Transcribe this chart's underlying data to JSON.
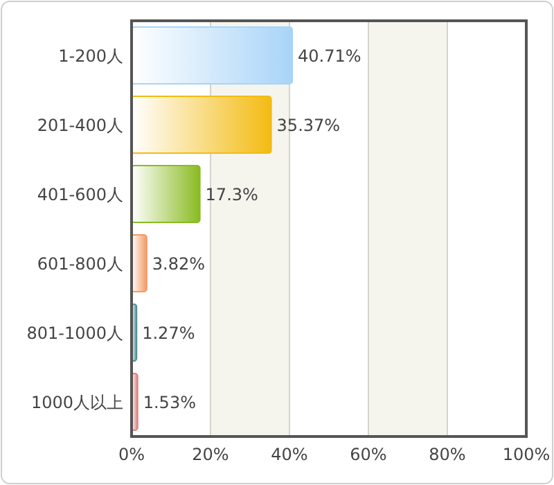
{
  "chart_data": {
    "type": "bar",
    "orientation": "horizontal",
    "categories": [
      "1-200人",
      "201-400人",
      "401-600人",
      "601-800人",
      "801-1000人",
      "1000人以上"
    ],
    "values": [
      40.71,
      35.37,
      17.3,
      3.82,
      1.27,
      1.53
    ],
    "value_labels": [
      "40.71%",
      "35.37%",
      "17.3%",
      "3.82%",
      "1.27%",
      "1.53%"
    ],
    "colors": [
      "#a8d4f8",
      "#f3bb12",
      "#8abb22",
      "#f59a66",
      "#4f8f98",
      "#e08080"
    ],
    "xlim": [
      0,
      100
    ],
    "xticks": [
      {
        "value": 0,
        "label": "0%"
      },
      {
        "value": 20,
        "label": "20%"
      },
      {
        "value": 40,
        "label": "40%"
      },
      {
        "value": 60,
        "label": "60%"
      },
      {
        "value": 80,
        "label": "80%"
      },
      {
        "value": 100,
        "label": "100%"
      }
    ],
    "grid": "x"
  }
}
